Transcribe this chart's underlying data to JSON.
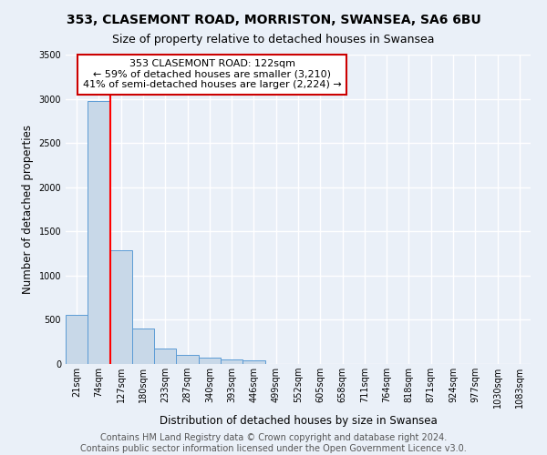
{
  "title1": "353, CLASEMONT ROAD, MORRISTON, SWANSEA, SA6 6BU",
  "title2": "Size of property relative to detached houses in Swansea",
  "xlabel": "Distribution of detached houses by size in Swansea",
  "ylabel": "Number of detached properties",
  "categories": [
    "21sqm",
    "74sqm",
    "127sqm",
    "180sqm",
    "233sqm",
    "287sqm",
    "340sqm",
    "393sqm",
    "446sqm",
    "499sqm",
    "552sqm",
    "605sqm",
    "658sqm",
    "711sqm",
    "764sqm",
    "818sqm",
    "871sqm",
    "924sqm",
    "977sqm",
    "1030sqm",
    "1083sqm"
  ],
  "values": [
    560,
    2980,
    1290,
    400,
    175,
    100,
    70,
    50,
    45,
    0,
    0,
    0,
    0,
    0,
    0,
    0,
    0,
    0,
    0,
    0,
    0
  ],
  "bar_color": "#c8d8e8",
  "bar_edge_color": "#5b9bd5",
  "red_line_index": 1.5,
  "annotation_text_line1": "353 CLASEMONT ROAD: 122sqm",
  "annotation_text_line2": "← 59% of detached houses are smaller (3,210)",
  "annotation_text_line3": "41% of semi-detached houses are larger (2,224) →",
  "annotation_box_color": "#ffffff",
  "annotation_box_edge": "#cc0000",
  "ylim": [
    0,
    3500
  ],
  "yticks": [
    0,
    500,
    1000,
    1500,
    2000,
    2500,
    3000,
    3500
  ],
  "footer1": "Contains HM Land Registry data © Crown copyright and database right 2024.",
  "footer2": "Contains public sector information licensed under the Open Government Licence v3.0.",
  "bg_color": "#eaf0f8",
  "grid_color": "#ffffff",
  "title1_fontsize": 10,
  "title2_fontsize": 9,
  "tick_fontsize": 7,
  "label_fontsize": 8.5,
  "footer_fontsize": 7,
  "annot_fontsize": 8
}
